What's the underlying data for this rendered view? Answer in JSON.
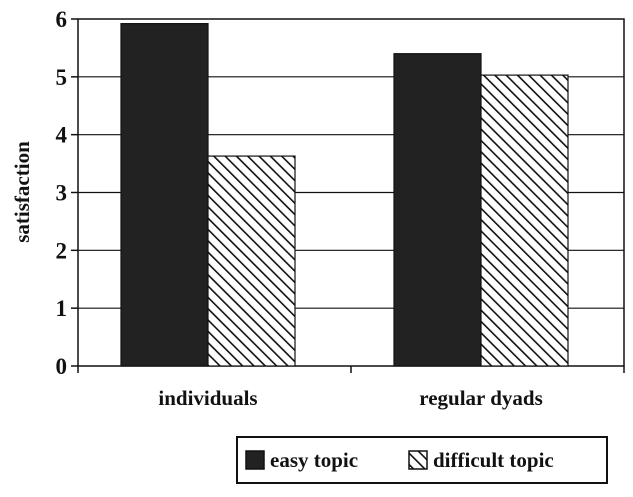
{
  "chart_data": {
    "type": "bar",
    "categories": [
      "individuals",
      "regular dyads"
    ],
    "series": [
      {
        "name": "easy topic",
        "values": [
          5.92,
          5.4
        ],
        "pattern": "solid",
        "color": "#222222"
      },
      {
        "name": "difficult topic",
        "values": [
          3.63,
          5.03
        ],
        "pattern": "hatched",
        "color": "#222222"
      }
    ],
    "title": "",
    "xlabel": "",
    "ylabel": "satisfaction",
    "ylim": [
      0,
      6
    ],
    "yticks": [
      "0",
      "1",
      "2",
      "3",
      "4",
      "5",
      "6"
    ],
    "grid": true,
    "legend_position": "bottom-right"
  }
}
